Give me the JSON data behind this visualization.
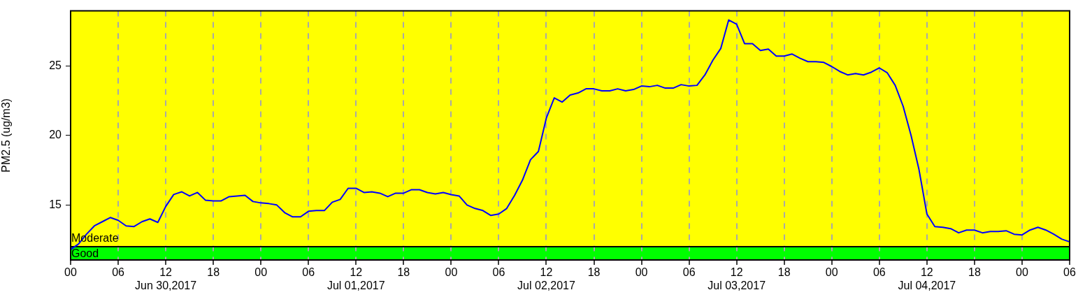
{
  "chart_data": {
    "type": "line",
    "ylabel": "PM2.5 (ug/m3)",
    "x": [
      "2017-06-30T00:00",
      "2017-06-30T01:00",
      "2017-06-30T02:00",
      "2017-06-30T03:00",
      "2017-06-30T04:00",
      "2017-06-30T05:00",
      "2017-06-30T06:00",
      "2017-06-30T07:00",
      "2017-06-30T08:00",
      "2017-06-30T09:00",
      "2017-06-30T10:00",
      "2017-06-30T11:00",
      "2017-06-30T12:00",
      "2017-06-30T13:00",
      "2017-06-30T14:00",
      "2017-06-30T15:00",
      "2017-06-30T16:00",
      "2017-06-30T17:00",
      "2017-06-30T18:00",
      "2017-06-30T19:00",
      "2017-06-30T20:00",
      "2017-06-30T21:00",
      "2017-06-30T22:00",
      "2017-06-30T23:00",
      "2017-07-01T00:00",
      "2017-07-01T01:00",
      "2017-07-01T02:00",
      "2017-07-01T03:00",
      "2017-07-01T04:00",
      "2017-07-01T05:00",
      "2017-07-01T06:00",
      "2017-07-01T07:00",
      "2017-07-01T08:00",
      "2017-07-01T09:00",
      "2017-07-01T10:00",
      "2017-07-01T11:00",
      "2017-07-01T12:00",
      "2017-07-01T13:00",
      "2017-07-01T14:00",
      "2017-07-01T15:00",
      "2017-07-01T16:00",
      "2017-07-01T17:00",
      "2017-07-01T18:00",
      "2017-07-01T19:00",
      "2017-07-01T20:00",
      "2017-07-01T21:00",
      "2017-07-01T22:00",
      "2017-07-01T23:00",
      "2017-07-02T00:00",
      "2017-07-02T01:00",
      "2017-07-02T02:00",
      "2017-07-02T03:00",
      "2017-07-02T04:00",
      "2017-07-02T05:00",
      "2017-07-02T06:00",
      "2017-07-02T07:00",
      "2017-07-02T08:00",
      "2017-07-02T09:00",
      "2017-07-02T10:00",
      "2017-07-02T11:00",
      "2017-07-02T12:00",
      "2017-07-02T13:00",
      "2017-07-02T14:00",
      "2017-07-02T15:00",
      "2017-07-02T16:00",
      "2017-07-02T17:00",
      "2017-07-02T18:00",
      "2017-07-02T19:00",
      "2017-07-02T20:00",
      "2017-07-02T21:00",
      "2017-07-02T22:00",
      "2017-07-02T23:00",
      "2017-07-03T00:00",
      "2017-07-03T01:00",
      "2017-07-03T02:00",
      "2017-07-03T03:00",
      "2017-07-03T04:00",
      "2017-07-03T05:00",
      "2017-07-03T06:00",
      "2017-07-03T07:00",
      "2017-07-03T08:00",
      "2017-07-03T09:00",
      "2017-07-03T10:00",
      "2017-07-03T11:00",
      "2017-07-03T12:00",
      "2017-07-03T13:00",
      "2017-07-03T14:00",
      "2017-07-03T15:00",
      "2017-07-03T16:00",
      "2017-07-03T17:00",
      "2017-07-03T18:00",
      "2017-07-03T19:00",
      "2017-07-03T20:00",
      "2017-07-03T21:00",
      "2017-07-03T22:00",
      "2017-07-03T23:00",
      "2017-07-04T00:00",
      "2017-07-04T01:00",
      "2017-07-04T02:00",
      "2017-07-04T03:00",
      "2017-07-04T04:00",
      "2017-07-04T05:00",
      "2017-07-04T06:00",
      "2017-07-04T07:00",
      "2017-07-04T08:00",
      "2017-07-04T09:00",
      "2017-07-04T10:00",
      "2017-07-04T11:00",
      "2017-07-04T12:00",
      "2017-07-04T13:00",
      "2017-07-04T14:00",
      "2017-07-04T15:00",
      "2017-07-04T16:00",
      "2017-07-04T17:00",
      "2017-07-04T18:00",
      "2017-07-04T19:00",
      "2017-07-04T20:00",
      "2017-07-04T21:00",
      "2017-07-04T22:00",
      "2017-07-04T23:00",
      "2017-07-05T00:00",
      "2017-07-05T01:00",
      "2017-07-05T02:00",
      "2017-07-05T03:00",
      "2017-07-05T04:00",
      "2017-07-05T05:00",
      "2017-07-05T06:00"
    ],
    "series": [
      {
        "color": "#0000ff",
        "values": [
          11.8,
          12.2,
          12.9,
          13.5,
          13.8,
          14.1,
          13.9,
          13.5,
          13.45,
          13.8,
          14.0,
          13.75,
          14.9,
          15.75,
          15.95,
          15.65,
          15.9,
          15.35,
          15.3,
          15.3,
          15.6,
          15.65,
          15.7,
          15.25,
          15.15,
          15.1,
          15.0,
          14.45,
          14.15,
          14.15,
          14.55,
          14.6,
          14.6,
          15.2,
          15.4,
          16.2,
          16.2,
          15.9,
          15.95,
          15.85,
          15.6,
          15.85,
          15.85,
          16.1,
          16.1,
          15.9,
          15.8,
          15.9,
          15.75,
          15.65,
          15.0,
          14.75,
          14.6,
          14.25,
          14.35,
          14.75,
          15.7,
          16.8,
          18.25,
          18.85,
          21.25,
          22.7,
          22.4,
          22.9,
          23.05,
          23.35,
          23.35,
          23.2,
          23.2,
          23.35,
          23.2,
          23.3,
          23.55,
          23.5,
          23.6,
          23.4,
          23.4,
          23.65,
          23.55,
          23.6,
          24.35,
          25.4,
          26.25,
          28.3,
          28.0,
          26.6,
          26.6,
          26.1,
          26.2,
          25.7,
          25.7,
          25.85,
          25.55,
          25.3,
          25.3,
          25.25,
          24.95,
          24.6,
          24.35,
          24.45,
          24.35,
          24.55,
          24.85,
          24.5,
          23.6,
          22.1,
          20.0,
          17.55,
          14.35,
          13.45,
          13.4,
          13.3,
          13.0,
          13.2,
          13.2,
          13.0,
          13.1,
          13.1,
          13.15,
          12.9,
          12.85,
          13.2,
          13.4,
          13.2,
          12.9,
          12.55,
          12.35
        ]
      }
    ],
    "xlim": [
      "2017-06-30T00:00",
      "2017-07-05T06:00"
    ],
    "xticks": [
      {
        "value": "2017-06-30T00:00",
        "label": "00"
      },
      {
        "value": "2017-06-30T06:00",
        "label": "06"
      },
      {
        "value": "2017-06-30T12:00",
        "label": "12\nJun 30,2017"
      },
      {
        "value": "2017-06-30T18:00",
        "label": "18"
      },
      {
        "value": "2017-07-01T00:00",
        "label": "00"
      },
      {
        "value": "2017-07-01T06:00",
        "label": "06"
      },
      {
        "value": "2017-07-01T12:00",
        "label": "12\nJul 01,2017"
      },
      {
        "value": "2017-07-01T18:00",
        "label": "18"
      },
      {
        "value": "2017-07-02T00:00",
        "label": "00"
      },
      {
        "value": "2017-07-02T06:00",
        "label": "06"
      },
      {
        "value": "2017-07-02T12:00",
        "label": "12\nJul 02,2017"
      },
      {
        "value": "2017-07-02T18:00",
        "label": "18"
      },
      {
        "value": "2017-07-03T00:00",
        "label": "00"
      },
      {
        "value": "2017-07-03T06:00",
        "label": "06"
      },
      {
        "value": "2017-07-03T12:00",
        "label": "12\nJul 03,2017"
      },
      {
        "value": "2017-07-03T18:00",
        "label": "18"
      },
      {
        "value": "2017-07-04T00:00",
        "label": "00"
      },
      {
        "value": "2017-07-04T06:00",
        "label": "06"
      },
      {
        "value": "2017-07-04T12:00",
        "label": "12\nJul 04,2017"
      },
      {
        "value": "2017-07-04T18:00",
        "label": "18"
      },
      {
        "value": "2017-07-05T00:00",
        "label": "00"
      },
      {
        "value": "2017-07-05T06:00",
        "label": "06"
      }
    ],
    "ylim": [
      11.05,
      28.95
    ],
    "yticks": [
      15,
      20,
      25
    ],
    "bands": [
      {
        "axis": "y",
        "from": 11.05,
        "to": 12,
        "label": "Good",
        "color": "#00ff00"
      },
      {
        "axis": "y",
        "from": 12,
        "to": 28.95,
        "label": "Moderate",
        "color": "#ffff00"
      }
    ],
    "ref_lines": [
      {
        "axis": "y",
        "value": 12,
        "color": "#000000"
      }
    ],
    "grid": "x",
    "marker": "none",
    "line_style": "solid"
  }
}
